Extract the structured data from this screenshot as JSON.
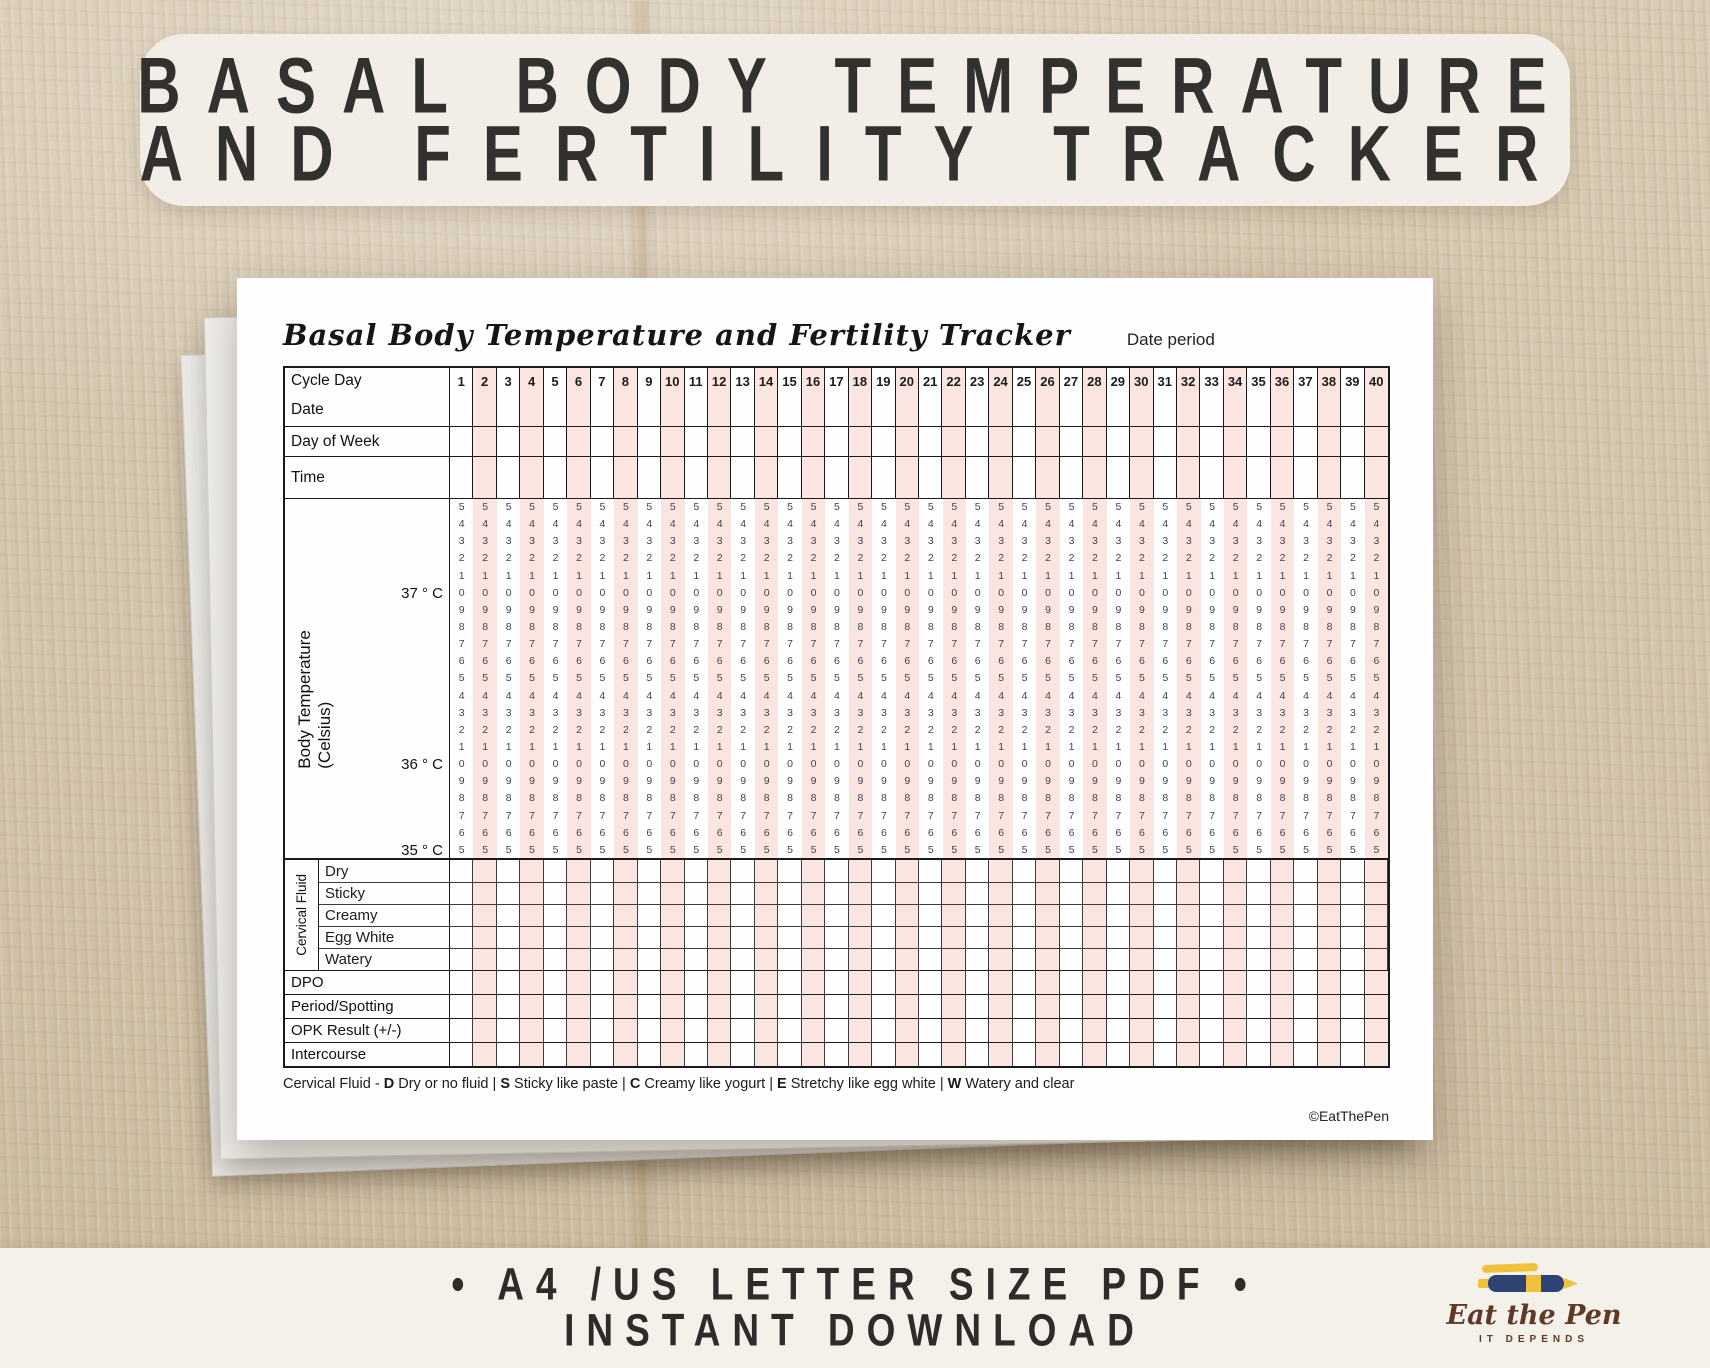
{
  "banner": {
    "line1": "BASAL BODY TEMPERATURE",
    "line2": "AND FERTILITY TRACKER"
  },
  "paper": {
    "title": "Basal Body Temperature and Fertility Tracker",
    "date_period_label": "Date period",
    "copyright": "©EatThePen",
    "table": {
      "cycle_day_label": "Cycle Day",
      "days": [
        1,
        2,
        3,
        4,
        5,
        6,
        7,
        8,
        9,
        10,
        11,
        12,
        13,
        14,
        15,
        16,
        17,
        18,
        19,
        20,
        21,
        22,
        23,
        24,
        25,
        26,
        27,
        28,
        29,
        30,
        31,
        32,
        33,
        34,
        35,
        36,
        37,
        38,
        39,
        40
      ],
      "info_rows": [
        "Date",
        "Day of Week",
        "Time"
      ],
      "temperature": {
        "axis_label": "Body Temperature (Celsius)",
        "digits": [
          "5",
          "4",
          "3",
          "2",
          "1",
          "0",
          "9",
          "8",
          "7",
          "6",
          "5",
          "4",
          "3",
          "2",
          "1",
          "0",
          "9",
          "8",
          "7",
          "6",
          "5"
        ],
        "scale": [
          {
            "row": 5,
            "label": "37 ° C"
          },
          {
            "row": 15,
            "label": "36 ° C"
          },
          {
            "row": 20,
            "label": "35 ° C"
          }
        ]
      },
      "cervical_fluid": {
        "group_label": "Cervical Fluid",
        "rows": [
          "Dry",
          "Sticky",
          "Creamy",
          "Egg White",
          "Watery"
        ]
      },
      "bottom_rows": [
        "DPO",
        "Period/Spotting",
        "OPK Result (+/-)",
        "Intercourse"
      ],
      "legend": {
        "prefix": "Cervical Fluid - ",
        "separator": " | ",
        "items": [
          {
            "key": "D",
            "text": " Dry or no fluid"
          },
          {
            "key": "S",
            "text": " Sticky like paste"
          },
          {
            "key": "C",
            "text": " Creamy like yogurt"
          },
          {
            "key": "E",
            "text": " Stretchy like egg white"
          },
          {
            "key": "W",
            "text": " Watery and clear"
          }
        ]
      }
    }
  },
  "footer": {
    "line1": "• A4 /US LETTER SIZE PDF •",
    "line2": "INSTANT DOWNLOAD",
    "logo": {
      "name": "Eat the Pen",
      "tagline": "IT DEPENDS",
      "icon": "pen-icon"
    }
  },
  "colors": {
    "stripe_pink": "#fae5e1",
    "banner_bg": "#f2eee7",
    "footer_bg": "#f4f0ea",
    "wood": "#d5c6af",
    "digit_ink": "#44424e",
    "logo_navy": "#2d4373",
    "logo_yellow": "#eec23c",
    "logo_brown": "#5e3a26"
  }
}
